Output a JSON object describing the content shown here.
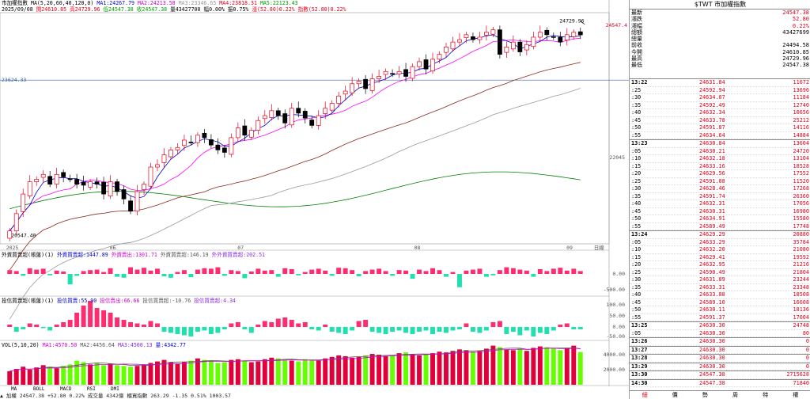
{
  "header": {
    "title": "市加權指數",
    "ma_label": "MA(5,20,60,40,120,0)",
    "ma1": "MA1:24267.79",
    "ma2": "MA2:24213.58",
    "ma3": "MA3:23346.65",
    "ma4": "MA4:23818.31",
    "ma5": "MA5:22123.43",
    "date": "2025/09/08",
    "open": "開24610.85",
    "high": "高24729.96",
    "low": "低24547.38",
    "close": "收24547.38",
    "vol": "量43427700",
    "amp": "幅0.00%",
    "chg_pct": "振0.75%",
    "chg": "漲(52.80)0.22%",
    "idx": "指數(52.80)0.22%"
  },
  "price_axis": {
    "left_level": "23624.33",
    "mid_label": "22045",
    "high_marker": "24729.96",
    "last_marker": "24547.4",
    "low_marker": "20547.40"
  },
  "month_labels": [
    "2025",
    "06",
    "07",
    "08",
    "09",
    "日線"
  ],
  "ind1": {
    "title": "外資買賣超(帳盤)(1)",
    "buy": "外資買賣超:1447.89",
    "net": "外資賣出:1301.71",
    "sell": "外資買賣超:146.19",
    "avg": "外外資買賣超:202.51",
    "axis": [
      "0.00",
      "-500.00"
    ]
  },
  "ind2": {
    "title": "投信買賣超(帳盤)(1)",
    "buy": "投信買賣:55.90",
    "net": "投信賣出:66.66",
    "sell": "投信買賣超:-10.76",
    "avg": "投信買賣超:4.34",
    "axis": [
      "100.00",
      "50.00",
      "0.00",
      "-50.00"
    ]
  },
  "vol": {
    "title": "VOL(5,10,20)",
    "v1": "MA1:4570.50",
    "v2": "MA2:4456.64",
    "v3": "MA3:4500.13",
    "v4": "量:4342.77",
    "axis": [
      "4000.00",
      "2000.00"
    ]
  },
  "bottom_tabs": [
    "MA",
    "BOLL",
    "MACD",
    "RSI",
    "DMI"
  ],
  "status_line": "▲ 加權 24547.38  +52.80  0.22%  成交量 4342億  櫃買指數 263.29  -1.35  0.51%  1003.57",
  "panel": {
    "title": "$TWT 市加權指數",
    "quote": [
      {
        "k": "最新",
        "v": "24547.38"
      },
      {
        "k": "漲跌",
        "v": "52.80"
      },
      {
        "k": "漲幅",
        "v": "0.22%"
      },
      {
        "k": "總額",
        "v": "43427699"
      },
      {
        "k": "總量",
        "v": ""
      },
      {
        "k": "前收",
        "v": "24494.58"
      },
      {
        "k": "今開",
        "v": "24610.85"
      },
      {
        "k": "最高",
        "v": "24729.96"
      },
      {
        "k": "最低",
        "v": "24547.38"
      }
    ],
    "ticks": [
      {
        "t": "13:22",
        "p": "24631.84",
        "q": "11672",
        "m": true
      },
      {
        "t": ":25",
        "p": "24592.94",
        "q": "13696"
      },
      {
        "t": ":30",
        "p": "24634.07",
        "q": "11184"
      },
      {
        "t": ":35",
        "p": "24592.49",
        "q": "12740"
      },
      {
        "t": ":40",
        "p": "24632.34",
        "q": "10656"
      },
      {
        "t": ":45",
        "p": "24633.78",
        "q": "25212"
      },
      {
        "t": ":50",
        "p": "24591.87",
        "q": "14116"
      },
      {
        "t": ":55",
        "p": "24634.64",
        "q": "14884"
      },
      {
        "t": "13:23",
        "p": "24630.84",
        "q": "13604",
        "m": true
      },
      {
        "t": ":05",
        "p": "24630.21",
        "q": "24720"
      },
      {
        "t": ":10",
        "p": "24632.18",
        "q": "13104"
      },
      {
        "t": ":15",
        "p": "24633.16",
        "q": "18528"
      },
      {
        "t": ":20",
        "p": "24629.56",
        "q": "17552"
      },
      {
        "t": ":25",
        "p": "24591.08",
        "q": "11520"
      },
      {
        "t": ":30",
        "p": "24628.46",
        "q": "17268"
      },
      {
        "t": ":35",
        "p": "24591.74",
        "q": "26360"
      },
      {
        "t": ":40",
        "p": "24632.31",
        "q": "17056"
      },
      {
        "t": ":45",
        "p": "24630.31",
        "q": "16980"
      },
      {
        "t": ":50",
        "p": "24634.91",
        "q": "15580"
      },
      {
        "t": ":55",
        "p": "24589.49",
        "q": "17748"
      },
      {
        "t": "13:24",
        "p": "24629.29",
        "q": "20880",
        "m": true
      },
      {
        "t": ":05",
        "p": "24633.29",
        "q": "35784"
      },
      {
        "t": ":10",
        "p": "24632.20",
        "q": "21080"
      },
      {
        "t": ":15",
        "p": "24629.41",
        "q": "19592"
      },
      {
        "t": ":20",
        "p": "24632.95",
        "q": "21216"
      },
      {
        "t": ":25",
        "p": "24590.49",
        "q": "21804"
      },
      {
        "t": ":30",
        "p": "24631.89",
        "q": "23244"
      },
      {
        "t": ":35",
        "p": "24633.31",
        "q": "23348"
      },
      {
        "t": ":40",
        "p": "24633.88",
        "q": "18508"
      },
      {
        "t": ":45",
        "p": "24589.10",
        "q": "16608"
      },
      {
        "t": ":50",
        "p": "24630.11",
        "q": "18136"
      },
      {
        "t": ":55",
        "p": "24591.37",
        "q": "17004"
      },
      {
        "t": "13:25",
        "p": "24630.30",
        "q": "24748",
        "m": true
      },
      {
        "t": ":05",
        "p": "24630.30",
        "q": "80"
      },
      {
        "t": "13:26",
        "p": "24630.30",
        "q": "0",
        "m": true
      },
      {
        "t": "13:27",
        "p": "24630.30",
        "q": "0",
        "m": true
      },
      {
        "t": "13:28",
        "p": "24630.30",
        "q": "0",
        "m": true
      },
      {
        "t": "13:29",
        "p": "24630.30",
        "q": "0",
        "m": true
      },
      {
        "t": "13:30",
        "p": "24547.38",
        "q": "2715628",
        "m": true
      },
      {
        "t": "14:30",
        "p": "24547.38",
        "q": "71840",
        "m": true
      }
    ],
    "tabs": [
      "細",
      "價",
      "勢",
      "周",
      "特",
      "權"
    ]
  },
  "colors": {
    "up": "#e0001b",
    "down": "#000000",
    "ma1": "#0000d0",
    "ma2": "#ff00ff",
    "ma3": "#8b2a1a",
    "ma4": "#999999",
    "ma5": "#008000",
    "bar_pos": "#ff2d6f",
    "bar_neg": "#20e0b0",
    "vol_up": "#e0003a",
    "vol_dn": "#66ff00"
  },
  "chart_data": {
    "type": "candlestick",
    "period": "daily",
    "last": {
      "open": 24610.85,
      "high": 24729.96,
      "low": 24547.38,
      "close": 24547.38
    },
    "ylim": [
      20300,
      25000
    ],
    "closes": [
      20547,
      20900,
      21300,
      21550,
      21600,
      21700,
      21500,
      21700,
      21650,
      21600,
      21500,
      21480,
      21550,
      21500,
      21300,
      21550,
      21350,
      21200,
      20950,
      21350,
      21500,
      21850,
      21900,
      22100,
      22200,
      22250,
      22400,
      22350,
      22500,
      22450,
      22300,
      22200,
      22150,
      22450,
      22650,
      22500,
      22600,
      22800,
      22900,
      23000,
      22900,
      22750,
      23050,
      22950,
      22850,
      22700,
      22900,
      23050,
      23150,
      23300,
      23400,
      23550,
      23600,
      23450,
      23650,
      23700,
      23800,
      23750,
      23800,
      23700,
      23900,
      24000,
      23850,
      24050,
      24150,
      24300,
      24400,
      24450,
      24550,
      24450,
      24500,
      24600,
      24650,
      24150,
      24300,
      24400,
      24200,
      24350,
      24500,
      24600,
      24550,
      24500,
      24400,
      24550,
      24600,
      24547
    ],
    "f1": [
      80,
      60,
      -40,
      120,
      90,
      110,
      -30,
      70,
      50,
      -220,
      -40,
      60,
      80,
      90,
      40,
      120,
      -60,
      -80,
      140,
      90,
      130,
      70,
      110,
      -50,
      -80,
      40,
      80,
      -70,
      90,
      120,
      110,
      140,
      -40,
      80,
      60,
      -90,
      50,
      110,
      70,
      80,
      -60,
      120,
      100,
      -30,
      40,
      90,
      110,
      70,
      -40,
      130,
      120,
      80,
      -50,
      60,
      90,
      110,
      60,
      -40,
      80,
      70,
      -100,
      90,
      60,
      120,
      80,
      -60,
      40,
      -280,
      70,
      90,
      110,
      -60,
      -30,
      80,
      140,
      120,
      90,
      70,
      -60,
      100,
      60,
      110,
      130,
      70,
      110,
      60
    ],
    "f2": [
      10,
      -20,
      -10,
      15,
      10,
      -5,
      -15,
      10,
      20,
      30,
      60,
      90,
      110,
      80,
      70,
      60,
      40,
      30,
      20,
      15,
      10,
      25,
      15,
      -20,
      -25,
      -30,
      -35,
      -40,
      -20,
      -15,
      -30,
      -25,
      -10,
      15,
      20,
      -10,
      -25,
      10,
      25,
      20,
      35,
      40,
      30,
      15,
      20,
      -10,
      -15,
      10,
      -20,
      -25,
      -30,
      -15,
      25,
      30,
      -20,
      -25,
      -30,
      -20,
      -15,
      -25,
      -30,
      -20,
      -15,
      -30,
      -20,
      -25,
      -15,
      -10,
      15,
      -20,
      -25,
      -15,
      20,
      25,
      -30,
      -20,
      -35,
      -15,
      -40,
      -25,
      -30,
      -15,
      10,
      15,
      -10,
      -10
    ],
    "v": [
      1800,
      2100,
      2400,
      2000,
      2300,
      2600,
      2400,
      2200,
      2500,
      2700,
      3200,
      3000,
      2700,
      2900,
      2600,
      2800,
      2600,
      2500,
      2400,
      2500,
      2700,
      2900,
      3100,
      3300,
      3000,
      2800,
      3000,
      3200,
      3500,
      3300,
      3100,
      2900,
      3000,
      3300,
      3400,
      3200,
      3000,
      3100,
      3400,
      3600,
      3500,
      3300,
      3200,
      3100,
      3400,
      3300,
      3200,
      3500,
      3700,
      3900,
      3800,
      3600,
      3700,
      3900,
      4100,
      4000,
      3800,
      3900,
      4200,
      4300,
      4100,
      3900,
      4000,
      4200,
      4400,
      4300,
      4500,
      4700,
      4600,
      4400,
      4500,
      4800,
      5200,
      5000,
      4700,
      4600,
      4800,
      4500,
      4900,
      5100,
      5000,
      4800,
      4600,
      4900,
      5200,
      4342
    ]
  }
}
